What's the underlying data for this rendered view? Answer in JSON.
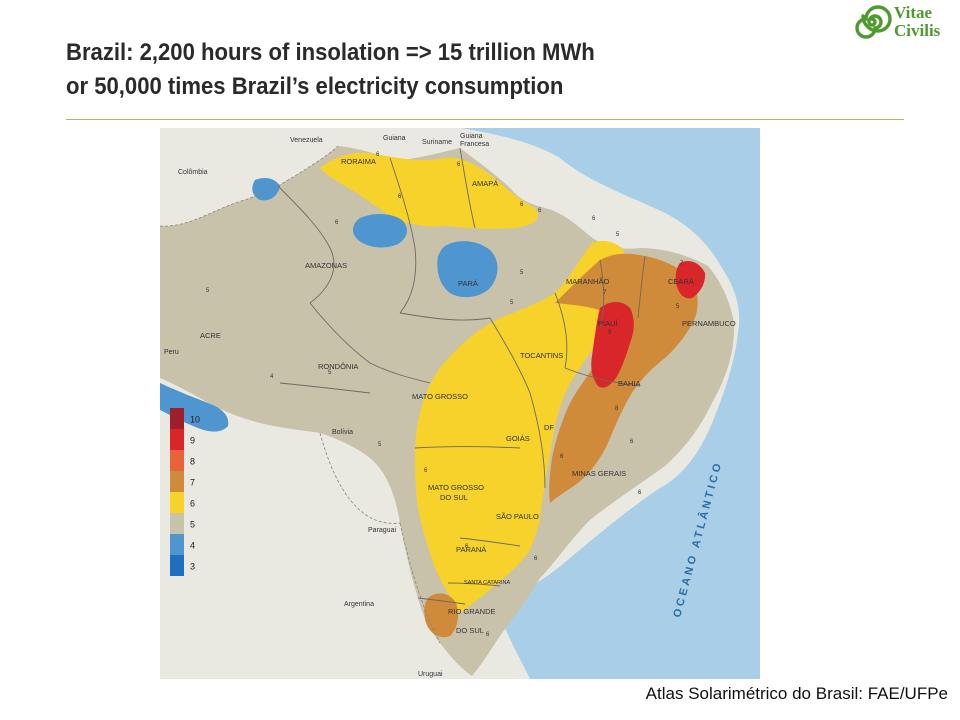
{
  "slide": {
    "title_line1": "Brazil: 2,200 hours of insolation => 15 trillion MWh",
    "title_line2": "or 50,000 times Brazil’s electricity consumption",
    "caption": "Atlas Solarimétrico do Brasil: FAE/UFPe"
  },
  "logo": {
    "line1": "Vitae",
    "line2": "Civilis",
    "icon": "spiral-logo-icon"
  },
  "legend": {
    "entries": [
      {
        "value": "10",
        "color": "#9c1f2a"
      },
      {
        "value": "9",
        "color": "#d8262b"
      },
      {
        "value": "8",
        "color": "#e8623a"
      },
      {
        "value": "7",
        "color": "#cf8a3a"
      },
      {
        "value": "6",
        "color": "#f6d22a"
      },
      {
        "value": "5",
        "color": "#c9c2ab"
      },
      {
        "value": "4",
        "color": "#4f95cf"
      },
      {
        "value": "3",
        "color": "#1f6fc0"
      }
    ]
  },
  "map": {
    "colors": {
      "land": "#e9e9e2",
      "ocean": "#a9cfe8",
      "zone5": "#c9c2ab",
      "zone6": "#f6d22a",
      "zone7": "#cf8a3a",
      "zone9": "#d8262b",
      "zone4": "#4f95cf"
    },
    "countries": {
      "venezuela": "Venezuela",
      "guiana": "Guiana",
      "suriname": "Suriname",
      "guiana_francesa_1": "Guiana",
      "guiana_francesa_2": "Francesa",
      "colombia": "Colômbia",
      "peru": "Peru",
      "bolivia": "Bolívia",
      "paraguai": "Paraguai",
      "argentina": "Argentina",
      "uruguai": "Uruguai"
    },
    "states": {
      "roraima": "RORAIMA",
      "amapa": "AMAPÁ",
      "amazonas": "AMAZONAS",
      "para": "PARÁ",
      "maranhao": "MARANHÃO",
      "ceara": "CEARÁ",
      "piaui": "PIAUÍ",
      "pernambuco": "PERNAMBUCO",
      "acre": "ACRE",
      "rondonia": "RONDÔNIA",
      "tocantins": "TOCANTINS",
      "bahia": "BAHIA",
      "mato_grosso": "MATO GROSSO",
      "goias": "GOIÁS",
      "df": "DF",
      "minas_gerais": "MINAS GERAIS",
      "ms_1": "MATO GROSSO",
      "ms_2": "DO SUL",
      "sao_paulo": "SÃO PAULO",
      "parana": "PARANÁ",
      "santa_catarina": "SANTA CATARINA",
      "rs_1": "RIO GRANDE",
      "rs_2": "DO SUL"
    },
    "ocean_label": "OCEANO   ATLÂNTICO",
    "isohel_labels": [
      "6",
      "6",
      "6",
      "6",
      "6",
      "6",
      "6",
      "7",
      "5",
      "5",
      "5",
      "5",
      "5",
      "4",
      "5",
      "6",
      "6",
      "6",
      "6",
      "6",
      "7",
      "8",
      "9",
      "5",
      "6",
      "6"
    ]
  }
}
